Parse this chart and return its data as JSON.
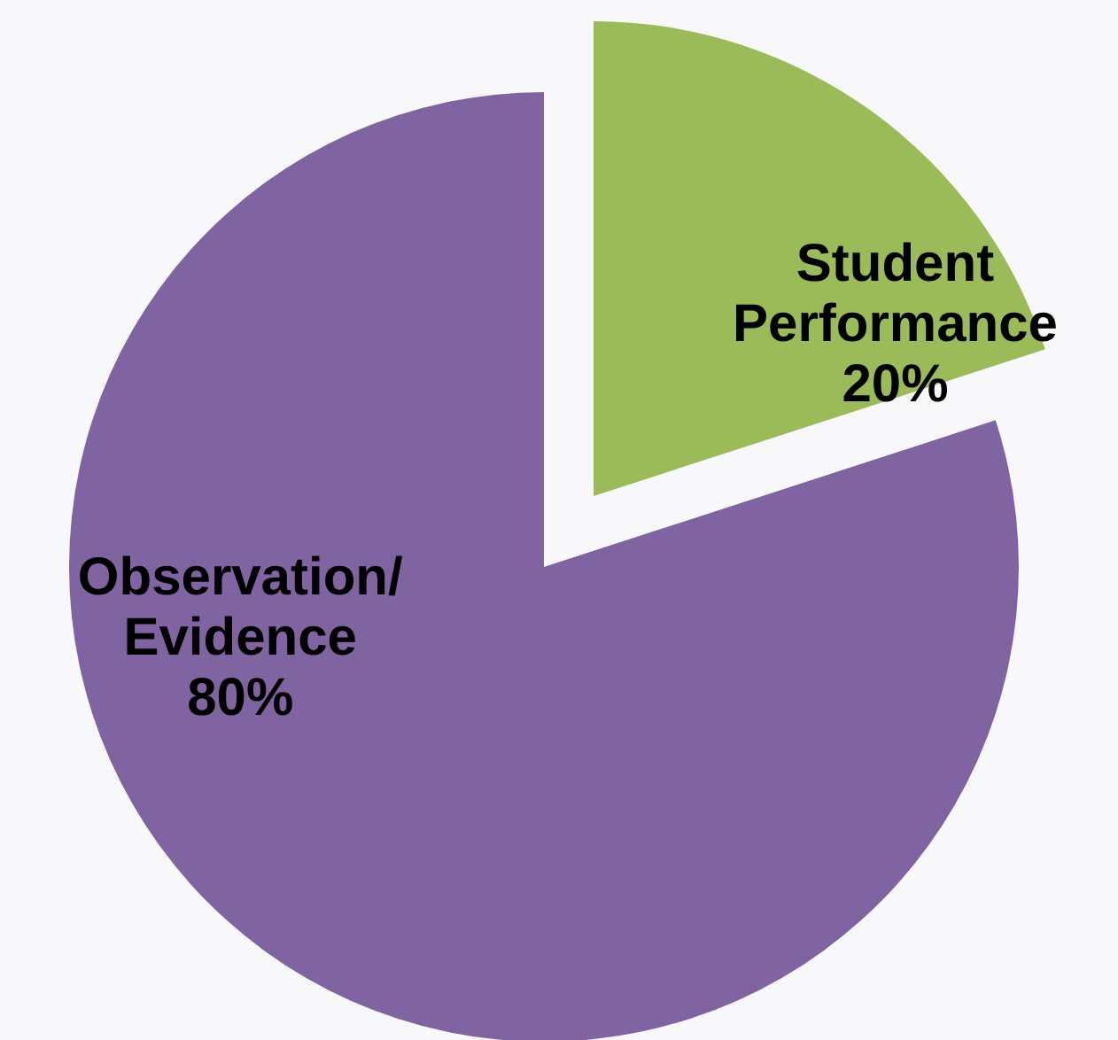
{
  "chart_data": {
    "type": "pie",
    "categories": [
      "Student Performance",
      "Observation/ Evidence"
    ],
    "values": [
      20,
      80
    ],
    "colors": [
      "#9bbb59",
      "#8064a2"
    ],
    "value_labels": [
      "20%",
      "80%"
    ]
  }
}
